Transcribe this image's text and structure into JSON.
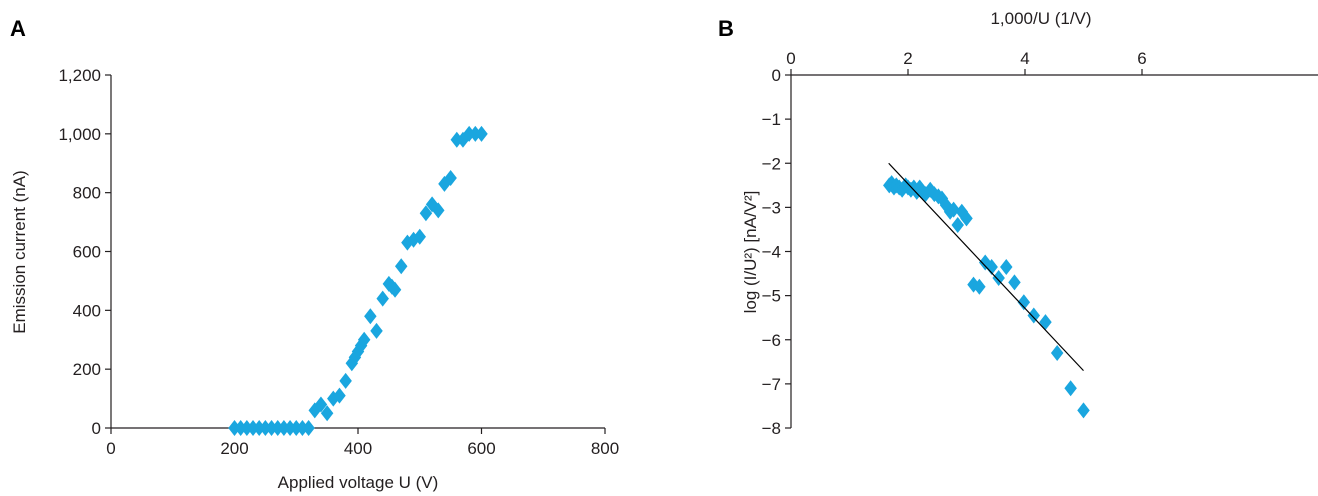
{
  "colors": {
    "marker": "#1aa6df",
    "axis": "#231f20",
    "fit_line": "#000000"
  },
  "chart_data": [
    {
      "panel": "A",
      "type": "scatter",
      "marker": "diamond",
      "xlabel": "Applied voltage U (V)",
      "ylabel": "Emission current (nA)",
      "xlim": [
        0,
        800
      ],
      "ylim": [
        0,
        1200
      ],
      "x_ticks": [
        0,
        200,
        400,
        600,
        800
      ],
      "x_tick_labels": [
        "0",
        "200",
        "400",
        "600",
        "800"
      ],
      "y_ticks": [
        0,
        200,
        400,
        600,
        800,
        1000,
        1200
      ],
      "y_tick_labels": [
        "0",
        "200",
        "400",
        "600",
        "800",
        "1,000",
        "1,200"
      ],
      "grid": false,
      "legend": "none",
      "series": [
        {
          "x": [
            200,
            210,
            220,
            230,
            240,
            250,
            260,
            270,
            280,
            290,
            300,
            310,
            320,
            330,
            340,
            350,
            360,
            370,
            380,
            390,
            395,
            400,
            405,
            410,
            420,
            430,
            440,
            450,
            455,
            460,
            470,
            480,
            490,
            500,
            510,
            520,
            530,
            540,
            550,
            560,
            570,
            580,
            590,
            600
          ],
          "y": [
            0,
            0,
            0,
            0,
            0,
            0,
            0,
            0,
            0,
            0,
            0,
            0,
            0,
            60,
            80,
            50,
            100,
            110,
            160,
            220,
            240,
            260,
            280,
            300,
            380,
            330,
            440,
            490,
            480,
            470,
            550,
            630,
            640,
            650,
            730,
            760,
            740,
            830,
            850,
            980,
            980,
            1000,
            1000,
            1000
          ]
        }
      ]
    },
    {
      "panel": "B",
      "type": "scatter",
      "marker": "diamond",
      "xlabel": "1,000/U (1/V)",
      "ylabel": "log (I/U²) [nA/V²]",
      "xaxis_position": "top",
      "xlim": [
        0,
        6
      ],
      "ylim": [
        -8,
        0
      ],
      "x_ticks": [
        0,
        2,
        4,
        6
      ],
      "x_tick_labels": [
        "0",
        "2",
        "4",
        "6"
      ],
      "y_ticks": [
        0,
        -1,
        -2,
        -3,
        -4,
        -5,
        -6,
        -7,
        -8
      ],
      "y_tick_labels": [
        "0",
        "−1",
        "−2",
        "−3",
        "−4",
        "−5",
        "−6",
        "−7",
        "−8"
      ],
      "grid": false,
      "legend": "none",
      "series": [
        {
          "x": [
            1.68,
            1.72,
            1.76,
            1.8,
            1.85,
            1.9,
            1.96,
            2.0,
            2.05,
            2.1,
            2.15,
            2.2,
            2.25,
            2.3,
            2.38,
            2.45,
            2.52,
            2.58,
            2.65,
            2.72,
            2.78,
            2.85,
            2.92,
            3.0,
            3.12,
            3.22,
            3.32,
            3.43,
            3.55,
            3.68,
            3.82,
            3.98,
            4.15,
            4.35,
            4.55,
            4.78,
            5.0
          ],
          "y": [
            -2.5,
            -2.45,
            -2.55,
            -2.5,
            -2.55,
            -2.6,
            -2.5,
            -2.55,
            -2.6,
            -2.55,
            -2.65,
            -2.55,
            -2.65,
            -2.7,
            -2.6,
            -2.7,
            -2.75,
            -2.8,
            -2.95,
            -3.1,
            -3.05,
            -3.4,
            -3.1,
            -3.25,
            -4.75,
            -4.8,
            -4.25,
            -4.35,
            -4.6,
            -4.35,
            -4.7,
            -5.15,
            -5.45,
            -5.6,
            -6.3,
            -7.1,
            -7.6
          ]
        }
      ],
      "fit_line": {
        "x": [
          1.67,
          5.0
        ],
        "y": [
          -2.0,
          -6.7
        ]
      }
    }
  ]
}
